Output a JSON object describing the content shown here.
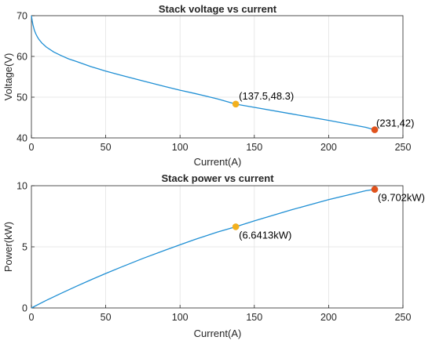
{
  "colors": {
    "line": "#1f8fd4",
    "marker_mid": "#f2b01e",
    "marker_end": "#e0521c",
    "grid": "#e2e2e2",
    "axis": "#262626"
  },
  "chart_data": [
    {
      "type": "line",
      "title": "Stack voltage vs current",
      "xlabel": "Current(A)",
      "ylabel": "Voltage(V)",
      "xlim": [
        0,
        250
      ],
      "ylim": [
        40,
        70
      ],
      "xticks": [
        "0",
        "50",
        "100",
        "150",
        "200",
        "250"
      ],
      "yticks": [
        "40",
        "50",
        "60",
        "70"
      ],
      "grid": true,
      "series": [
        {
          "x": [
            0,
            0.5,
            1,
            2,
            3,
            4,
            5,
            7,
            10,
            15,
            20,
            25,
            30,
            40,
            50,
            60,
            75,
            90,
            100,
            110,
            125,
            137.5,
            150,
            175,
            200,
            225,
            231
          ],
          "y": [
            70,
            68.8,
            67.8,
            66.4,
            65.5,
            64.8,
            64.2,
            63.3,
            62.3,
            61.1,
            60.2,
            59.4,
            58.8,
            57.5,
            56.4,
            55.4,
            54.0,
            52.6,
            51.7,
            50.9,
            49.6,
            48.3,
            47.5,
            45.9,
            44.3,
            42.6,
            42
          ]
        }
      ],
      "annotations": [
        {
          "x": 137.5,
          "y": 48.3,
          "text": "(137.5,48.3)",
          "color": "#f2b01e"
        },
        {
          "x": 231,
          "y": 42,
          "text": "(231,42)",
          "color": "#e0521c"
        }
      ]
    },
    {
      "type": "line",
      "title": "Stack power vs current",
      "xlabel": "Current(A)",
      "ylabel": "Power(kW)",
      "xlim": [
        0,
        250
      ],
      "ylim": [
        0,
        10
      ],
      "xticks": [
        "0",
        "50",
        "100",
        "150",
        "200",
        "250"
      ],
      "yticks": [
        "0",
        "5",
        "10"
      ],
      "grid": true,
      "series": [
        {
          "x": [
            0,
            10,
            20,
            30,
            40,
            50,
            60,
            75,
            90,
            100,
            110,
            125,
            137.5,
            150,
            175,
            200,
            225,
            231
          ],
          "y": [
            0,
            0.62,
            1.2,
            1.76,
            2.3,
            2.82,
            3.32,
            4.05,
            4.73,
            5.17,
            5.6,
            6.2,
            6.6413,
            7.12,
            8.03,
            8.86,
            9.59,
            9.702
          ]
        }
      ],
      "annotations": [
        {
          "x": 137.5,
          "y": 6.6413,
          "text": "(6.6413kW)",
          "color": "#f2b01e"
        },
        {
          "x": 231,
          "y": 9.702,
          "text": "(9.702kW)",
          "color": "#e0521c"
        }
      ]
    }
  ]
}
